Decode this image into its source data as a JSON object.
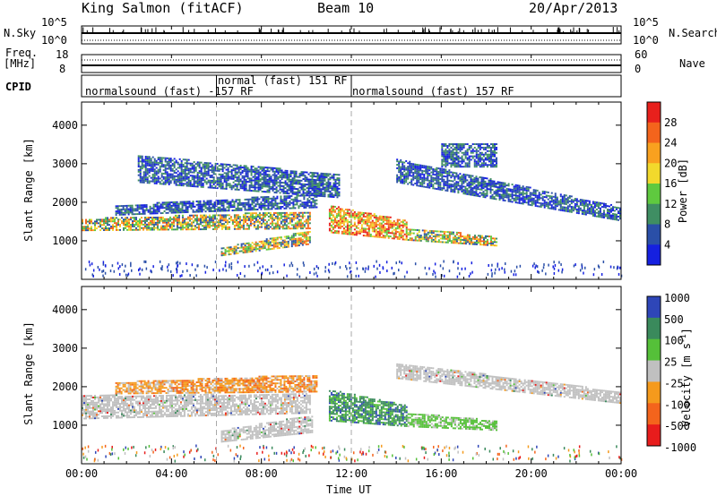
{
  "header": {
    "station": "King Salmon (fitACF)",
    "beam": "Beam 10",
    "date": "20/Apr/2013"
  },
  "top_panels": {
    "nsky": {
      "label": "N.Sky",
      "ticks": [
        "10^5",
        "10^0"
      ]
    },
    "nsearch": {
      "label": "N.Search",
      "ticks": [
        "10^5",
        "10^0"
      ]
    },
    "freq": {
      "label_line1": "Freq.",
      "label_line2": "[MHz]",
      "ticks": [
        "18",
        "8"
      ]
    },
    "nave": {
      "label": "Nave",
      "ticks": [
        "60",
        "0"
      ]
    },
    "cpid": {
      "label": "CPID",
      "segments": [
        {
          "text": "normalsound (fast) -157 RF",
          "start_h": 0,
          "end_h": 6
        },
        {
          "text": "normal (fast) 151 RF",
          "start_h": 6,
          "end_h": 12
        },
        {
          "text": "normalsound (fast) 157 RF",
          "start_h": 12,
          "end_h": 24
        }
      ]
    }
  },
  "colorbars": {
    "power": {
      "title": "Power [dB]",
      "ticks": [
        "28",
        "24",
        "20",
        "16",
        "12",
        "8",
        "4"
      ],
      "colors": [
        "#e8201c",
        "#f4641c",
        "#f9a11f",
        "#f2d92c",
        "#5fc93f",
        "#3f8e63",
        "#2a4fa8",
        "#1520e0"
      ]
    },
    "velocity": {
      "title": "Velocity [m s",
      "title_sup": "-1",
      "title_end": "]",
      "ticks": [
        "1000",
        "500",
        "100",
        "25",
        "-25",
        "-100",
        "-500",
        "-1000"
      ],
      "colors": [
        "#2e46b8",
        "#3a8a5c",
        "#55c039",
        "#c0c0c0",
        "#f59a1c",
        "#f4641c",
        "#e81c1c"
      ]
    }
  },
  "chart_data": [
    {
      "type": "heatmap",
      "name": "power",
      "ylabel": "Slant Range [km]",
      "yticks": [
        1000,
        2000,
        3000,
        4000
      ],
      "ylim": [
        0,
        4600
      ],
      "xlim": [
        0,
        24
      ],
      "bands": [
        {
          "t0": 0.0,
          "t1": 10.2,
          "r0": [
            1250,
            1550
          ],
          "r1": [
            1300,
            1750
          ],
          "level": "mid"
        },
        {
          "t0": 1.5,
          "t1": 10.5,
          "r0": [
            1650,
            1900
          ],
          "r1": [
            1850,
            2200
          ],
          "level": "low"
        },
        {
          "t0": 6.2,
          "t1": 10.2,
          "r0": [
            600,
            800
          ],
          "r1": [
            900,
            1250
          ],
          "level": "mid"
        },
        {
          "t0": 11.0,
          "t1": 14.5,
          "r0": [
            1200,
            1900
          ],
          "r1": [
            1000,
            1500
          ],
          "level": "high"
        },
        {
          "t0": 14.5,
          "t1": 18.5,
          "r0": [
            1000,
            1300
          ],
          "r1": [
            850,
            1100
          ],
          "level": "mid"
        },
        {
          "t0": 14.0,
          "t1": 24.0,
          "r0": [
            2500,
            3100
          ],
          "r1": [
            1500,
            1850
          ],
          "level": "low"
        },
        {
          "t0": 2.5,
          "t1": 11.5,
          "r0": [
            2500,
            3200
          ],
          "r1": [
            2100,
            2700
          ],
          "level": "low"
        },
        {
          "t0": 16.0,
          "t1": 18.5,
          "r0": [
            2900,
            3500
          ],
          "r1": [
            2900,
            3500
          ],
          "level": "low"
        }
      ]
    },
    {
      "type": "heatmap",
      "name": "velocity",
      "xlabel": "Time UT",
      "ylabel": "Slant Range [km]",
      "xticks": [
        "00:00",
        "04:00",
        "08:00",
        "12:00",
        "16:00",
        "20:00",
        "00:00"
      ],
      "yticks": [
        1000,
        2000,
        3000,
        4000
      ],
      "ylim": [
        0,
        4600
      ],
      "xlim": [
        0,
        24
      ],
      "bands": [
        {
          "t0": 0.0,
          "t1": 10.2,
          "r0": [
            1150,
            1750
          ],
          "r1": [
            1300,
            1800
          ],
          "level": "ground"
        },
        {
          "t0": 6.2,
          "t1": 10.3,
          "r0": [
            550,
            850
          ],
          "r1": [
            800,
            1250
          ],
          "level": "ground"
        },
        {
          "t0": 1.5,
          "t1": 10.5,
          "r0": [
            1800,
            2100
          ],
          "r1": [
            1850,
            2300
          ],
          "level": "away"
        },
        {
          "t0": 11.0,
          "t1": 14.5,
          "r0": [
            1100,
            1900
          ],
          "r1": [
            950,
            1500
          ],
          "level": "toward"
        },
        {
          "t0": 14.5,
          "t1": 18.5,
          "r0": [
            950,
            1300
          ],
          "r1": [
            850,
            1100
          ],
          "level": "weak"
        },
        {
          "t0": 14.0,
          "t1": 24.0,
          "r0": [
            2200,
            2600
          ],
          "r1": [
            1550,
            1850
          ],
          "level": "ground"
        }
      ]
    }
  ]
}
